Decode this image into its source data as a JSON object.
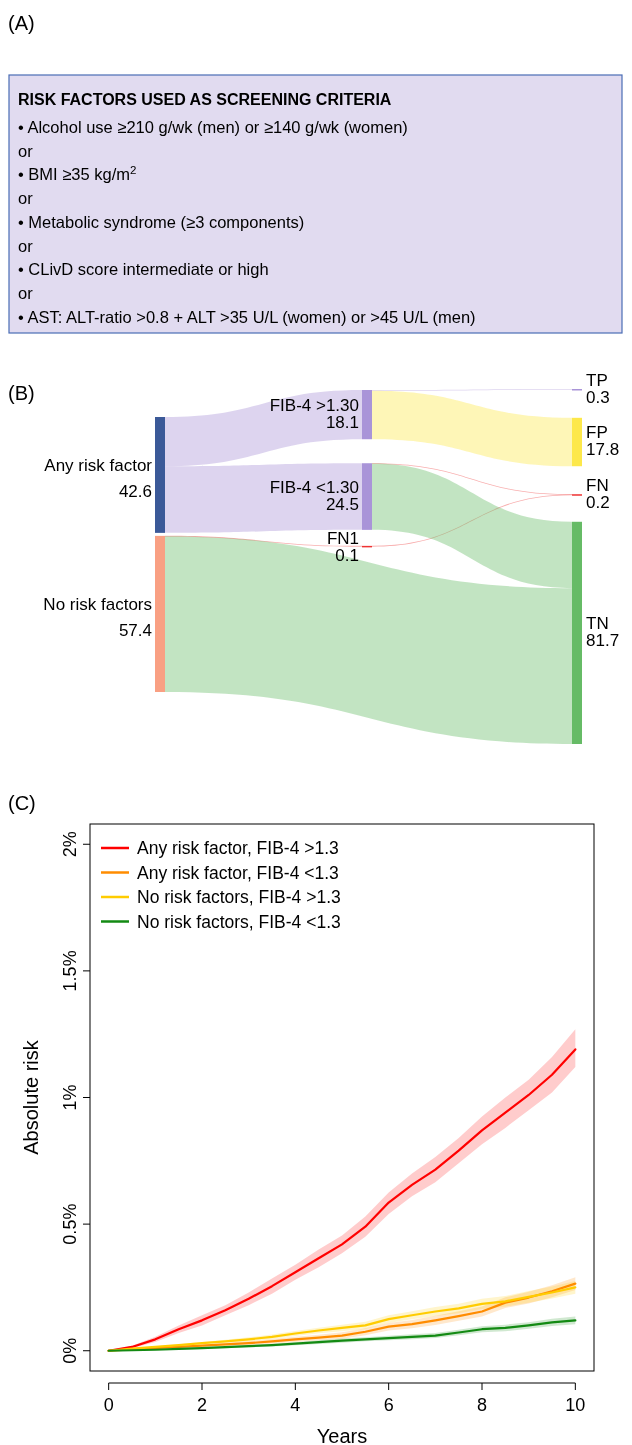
{
  "chart_data": [
    {
      "type": "other",
      "title": "RISK FACTORS USED AS SCREENING CRITERIA",
      "annotations": [
        "(A)",
        "• Alcohol use ≥210 g/wk (men) or ≥140 g/wk (women)",
        "or",
        "• BMI ≥35 kg/m$^{2}$",
        "or",
        "• Metabolic syndrome (≥3 components)",
        "or",
        "• CLivD score intermediate or high",
        "or",
        "• AST: ALT-ratio >0.8 + ALT >35 U/L (women) or >45 U/L (men)"
      ]
    },
    {
      "type": "other",
      "annotations": [
        "(B)"
      ],
      "data_labels": true,
      "categories": [
        "Any risk factor",
        "No risk factors",
        "FIB-4 >1.30",
        "FIB-4 <1.30",
        "FN1",
        "TP",
        "FP",
        "FN",
        "TN"
      ],
      "values": [
        42.6,
        57.4,
        18.1,
        24.5,
        0.1,
        0.3,
        17.8,
        0.2,
        81.7
      ],
      "colors": [
        "#3b5998",
        "#f9a083",
        "#a994d8",
        "#a994d8",
        "#ee3333",
        "#a994d8",
        "#fde84a",
        "#ee3333",
        "#66bb66"
      ]
    },
    {
      "type": "line",
      "annotations": [
        "(C)"
      ],
      "xlabel": "Years",
      "ylabel": "Absolute risk",
      "legend": "top left",
      "xlim": [
        -0.4,
        10.4
      ],
      "xticks": [
        0,
        2,
        4,
        6,
        8,
        10
      ],
      "ylim": [
        -0.08,
        2.08
      ],
      "yticks": [
        {
          "value": 0,
          "label": "0%"
        },
        {
          "value": 0.5,
          "label": "0.5%"
        },
        {
          "value": 1,
          "label": "1%"
        },
        {
          "value": 1.5,
          "label": "1.5%"
        },
        {
          "value": 2,
          "label": "2%"
        }
      ],
      "x": [
        0,
        0.5,
        1,
        1.5,
        2,
        2.5,
        3,
        3.5,
        4,
        4.5,
        5,
        5.5,
        6,
        6.5,
        7,
        7.5,
        8,
        8.5,
        9,
        9.5,
        10
      ],
      "series": [
        {
          "name": "Any risk factor, FIB-4 >1.3",
          "color": "#ff0000",
          "values": [
            0,
            0.015,
            0.045,
            0.085,
            0.12,
            0.16,
            0.205,
            0.255,
            0.31,
            0.365,
            0.42,
            0.49,
            0.585,
            0.655,
            0.715,
            0.79,
            0.87,
            0.94,
            1.01,
            1.09,
            1.19
          ],
          "lower": [
            0,
            0.01,
            0.035,
            0.07,
            0.1,
            0.14,
            0.18,
            0.225,
            0.28,
            0.33,
            0.385,
            0.45,
            0.54,
            0.61,
            0.665,
            0.74,
            0.815,
            0.88,
            0.95,
            1.02,
            1.12
          ],
          "upper": [
            0,
            0.02,
            0.055,
            0.1,
            0.14,
            0.18,
            0.23,
            0.285,
            0.34,
            0.4,
            0.455,
            0.53,
            0.625,
            0.7,
            0.765,
            0.84,
            0.925,
            1.0,
            1.07,
            1.16,
            1.27
          ]
        },
        {
          "name": "Any risk factor, FIB-4 <1.3",
          "color": "#ff8c00",
          "values": [
            0,
            0.005,
            0.01,
            0.015,
            0.02,
            0.025,
            0.03,
            0.037,
            0.045,
            0.052,
            0.06,
            0.075,
            0.095,
            0.105,
            0.12,
            0.137,
            0.155,
            0.19,
            0.21,
            0.235,
            0.265
          ],
          "lower": [
            0,
            0.004,
            0.007,
            0.011,
            0.015,
            0.019,
            0.022,
            0.028,
            0.035,
            0.041,
            0.047,
            0.061,
            0.08,
            0.089,
            0.102,
            0.118,
            0.135,
            0.169,
            0.187,
            0.211,
            0.24
          ],
          "upper": [
            0,
            0.006,
            0.013,
            0.019,
            0.025,
            0.031,
            0.038,
            0.046,
            0.055,
            0.063,
            0.073,
            0.089,
            0.11,
            0.121,
            0.138,
            0.156,
            0.175,
            0.211,
            0.233,
            0.259,
            0.29
          ]
        },
        {
          "name": "No risk factors, FIB-4 >1.3",
          "color": "#ffcc00",
          "values": [
            0,
            0.008,
            0.015,
            0.022,
            0.03,
            0.037,
            0.045,
            0.055,
            0.068,
            0.08,
            0.09,
            0.1,
            0.125,
            0.14,
            0.155,
            0.167,
            0.185,
            0.195,
            0.213,
            0.23,
            0.25
          ],
          "lower": [
            0,
            0.007,
            0.012,
            0.018,
            0.025,
            0.031,
            0.037,
            0.046,
            0.058,
            0.069,
            0.077,
            0.086,
            0.11,
            0.124,
            0.137,
            0.148,
            0.165,
            0.174,
            0.19,
            0.206,
            0.225
          ],
          "upper": [
            0,
            0.009,
            0.018,
            0.026,
            0.035,
            0.043,
            0.053,
            0.064,
            0.078,
            0.091,
            0.103,
            0.114,
            0.14,
            0.156,
            0.173,
            0.186,
            0.205,
            0.216,
            0.236,
            0.254,
            0.275
          ]
        },
        {
          "name": "No risk factors, FIB-4 <1.3",
          "color": "#138a13",
          "values": [
            0,
            0.002,
            0.004,
            0.007,
            0.01,
            0.014,
            0.018,
            0.022,
            0.028,
            0.034,
            0.04,
            0.045,
            0.05,
            0.055,
            0.06,
            0.072,
            0.085,
            0.09,
            0.1,
            0.112,
            0.12
          ],
          "lower": [
            0,
            0.001,
            0.003,
            0.005,
            0.007,
            0.01,
            0.014,
            0.017,
            0.022,
            0.027,
            0.032,
            0.037,
            0.041,
            0.045,
            0.05,
            0.061,
            0.073,
            0.077,
            0.087,
            0.098,
            0.105
          ],
          "upper": [
            0,
            0.003,
            0.005,
            0.009,
            0.013,
            0.018,
            0.022,
            0.027,
            0.034,
            0.041,
            0.048,
            0.053,
            0.059,
            0.065,
            0.07,
            0.083,
            0.097,
            0.103,
            0.113,
            0.126,
            0.135
          ]
        }
      ]
    }
  ]
}
